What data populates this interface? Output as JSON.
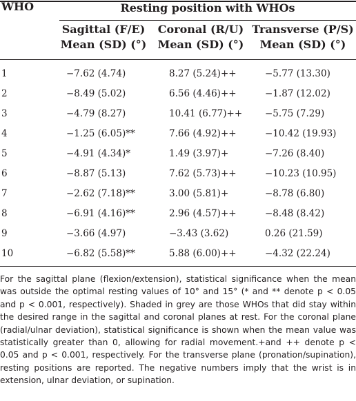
{
  "table": {
    "stub_header": "WHO",
    "spanner_header": "Resting position with WHOs",
    "columns": [
      {
        "line1": "Sagittal (F/E)",
        "line2": "Mean (SD) (°)"
      },
      {
        "line1": "Coronal (R/U)",
        "line2": "Mean (SD) (°)"
      },
      {
        "line1": "Transverse (P/S)",
        "line2": "Mean (SD) (°)"
      }
    ],
    "rows": [
      {
        "who": "1",
        "sagittal": "−7.62 (4.74)",
        "coronal": "8.27 (5.24)++",
        "transverse": "−5.77 (13.30)"
      },
      {
        "who": "2",
        "sagittal": "−8.49 (5.02)",
        "coronal": "6.56 (4.46)++",
        "transverse": "−1.87 (12.02)"
      },
      {
        "who": "3",
        "sagittal": "−4.79 (8.27)",
        "coronal": "10.41 (6.77)++",
        "transverse": "−5.75 (7.29)"
      },
      {
        "who": "4",
        "sagittal": "−1.25 (6.05)**",
        "coronal": "7.66 (4.92)++",
        "transverse": "−10.42 (19.93)"
      },
      {
        "who": "5",
        "sagittal": "−4.91 (4.34)*",
        "coronal": "1.49 (3.97)+",
        "transverse": "−7.26 (8.40)"
      },
      {
        "who": "6",
        "sagittal": "−8.87 (5.13)",
        "coronal": "7.62 (5.73)++",
        "transverse": "−10.23 (10.95)"
      },
      {
        "who": "7",
        "sagittal": "−2.62 (7.18)**",
        "coronal": "3.00 (5.81)+",
        "transverse": "−8.78 (6.80)"
      },
      {
        "who": "8",
        "sagittal": "−6.91 (4.16)**",
        "coronal": "2.96 (4.57)++",
        "transverse": "−8.48 (8.42)"
      },
      {
        "who": "9",
        "sagittal": "−3.66 (4.97)",
        "coronal": "−3.43 (3.62)",
        "transverse": "0.26 (21.59)"
      },
      {
        "who": "10",
        "sagittal": "−6.82 (5.58)**",
        "coronal": "5.88 (6.00)++",
        "transverse": "−4.32 (22.24)"
      }
    ]
  },
  "footnote": "For the sagittal plane (flexion/extension), statistical significance when the mean was outside the optimal resting values of 10° and 15° (* and ** denote p < 0.05 and p < 0.001, respectively). Shaded in grey are those WHOs that did stay within the desired range in the sagittal and coronal planes at rest. For the coronal plane (radial/ulnar deviation), statistical significance is shown when the mean value was statistically greater than 0, allowing for radial movement.+and ++ denote p < 0.05 and p < 0.001, respectively. For the transverse plane (pronation/supination), resting positions are reported. The negative numbers imply that the wrist is in extension, ulnar deviation, or supination."
}
